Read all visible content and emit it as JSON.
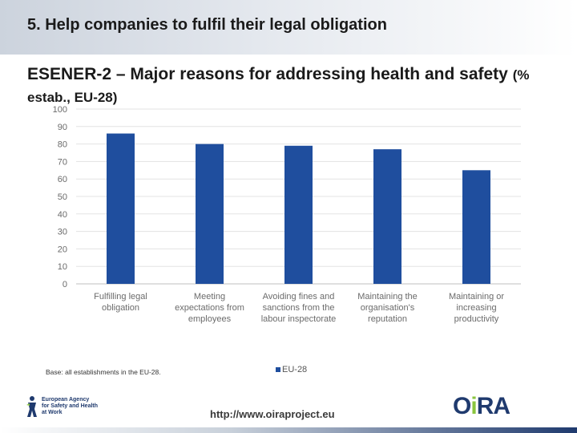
{
  "slide": {
    "title": "5. Help companies to fulfil their legal obligation",
    "subtitle_main": "ESENER-2 – Major reasons for addressing health and safety",
    "subtitle_paren": "(% estab., EU-28)"
  },
  "chart_data": {
    "type": "bar",
    "categories": [
      [
        "Fulfilling legal",
        "obligation"
      ],
      [
        "Meeting",
        "expectations from",
        "employees"
      ],
      [
        "Avoiding fines and",
        "sanctions from the",
        "labour inspectorate"
      ],
      [
        "Maintaining the",
        "organisation's",
        "reputation"
      ],
      [
        "Maintaining or",
        "increasing",
        "productivity"
      ]
    ],
    "series": [
      {
        "name": "EU-28",
        "values": [
          86,
          80,
          79,
          77,
          65
        ]
      }
    ],
    "ylim": [
      0,
      100
    ],
    "yticks": [
      0,
      10,
      20,
      30,
      40,
      50,
      60,
      70,
      80,
      90,
      100
    ],
    "grid": true,
    "legend_position": "bottom",
    "bar_color": "#1f4e9e"
  },
  "notes": {
    "base": "Base: all establishments in the EU-28."
  },
  "footer": {
    "agency_lines": [
      "European Agency",
      "for Safety and Health",
      "at Work"
    ],
    "url": "http://www.oiraproject.eu",
    "oira_prefix": "O",
    "oira_accent": "i",
    "oira_suffix": "RA"
  }
}
